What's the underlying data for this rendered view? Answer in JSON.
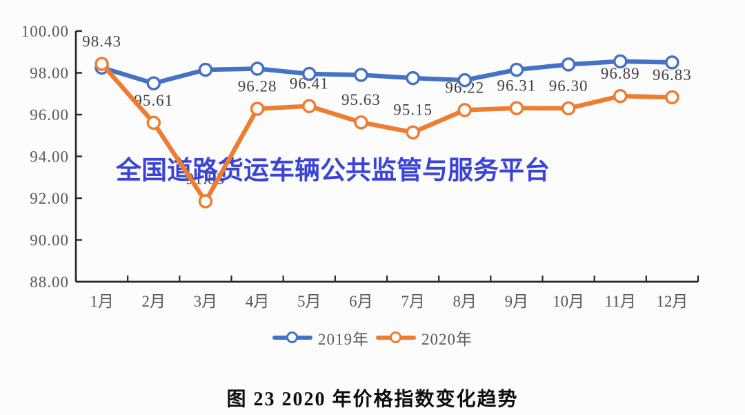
{
  "page": {
    "background": "#fcfcfc"
  },
  "watermark": {
    "text": "全国道路货运车辆公共监管与服务平台",
    "color": "#3a45d8"
  },
  "caption": {
    "text": "图 23  2020 年价格指数变化趋势"
  },
  "axis": {
    "line_color": "#262626",
    "tick_label_color": "#595959",
    "data_label_color": "#3f3f3f"
  },
  "chart_data": {
    "type": "line",
    "title": "图 23 2020 年价格指数变化趋势",
    "watermark": "全国道路货运车辆公共监管与服务平台",
    "categories": [
      "1月",
      "2月",
      "3月",
      "4月",
      "5月",
      "6月",
      "7月",
      "8月",
      "9月",
      "10月",
      "11月",
      "12月"
    ],
    "series": [
      {
        "name": "2019年",
        "color": "#4472C4",
        "values": [
          98.25,
          97.5,
          98.15,
          98.2,
          97.95,
          97.9,
          97.75,
          97.65,
          98.15,
          98.4,
          98.55,
          98.5
        ],
        "data_labels": false
      },
      {
        "name": "2020年",
        "color": "#ED7D31",
        "values": [
          98.43,
          95.61,
          91.85,
          96.28,
          96.41,
          95.63,
          95.15,
          96.22,
          96.31,
          96.3,
          96.89,
          96.83
        ],
        "data_labels": true
      }
    ],
    "ylim": [
      88,
      100
    ],
    "ytick_step": 2,
    "ytick_labels": [
      "88.00",
      "90.00",
      "92.00",
      "94.00",
      "96.00",
      "98.00",
      "100.00"
    ],
    "xlabel": "",
    "ylabel": "",
    "grid": false,
    "legend_position": "bottom",
    "marker": "open-circle",
    "note": "data labels shown for 2020年 series only; 2019年 series unlabeled (values estimated from plot)"
  }
}
